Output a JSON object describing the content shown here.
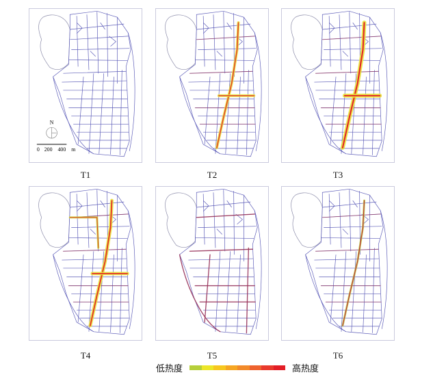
{
  "panels": [
    {
      "label": "T1",
      "heat": "none"
    },
    {
      "label": "T2",
      "heat": "cross"
    },
    {
      "label": "T3",
      "heat": "cross-strong"
    },
    {
      "label": "T4",
      "heat": "cross-north"
    },
    {
      "label": "T5",
      "heat": "diffuse"
    },
    {
      "label": "T6",
      "heat": "spine"
    }
  ],
  "map": {
    "north_label": "N",
    "scale_ticks": [
      "0",
      "200",
      "400"
    ],
    "scale_unit": "m",
    "street_color": "#5c5cb8"
  },
  "legend": {
    "low_label": "低热度",
    "high_label": "高热度",
    "colors": [
      "#b6cf3a",
      "#ece628",
      "#f7c71f",
      "#f6a623",
      "#f28a2a",
      "#ee622e",
      "#e93a2c",
      "#e31e26"
    ]
  }
}
